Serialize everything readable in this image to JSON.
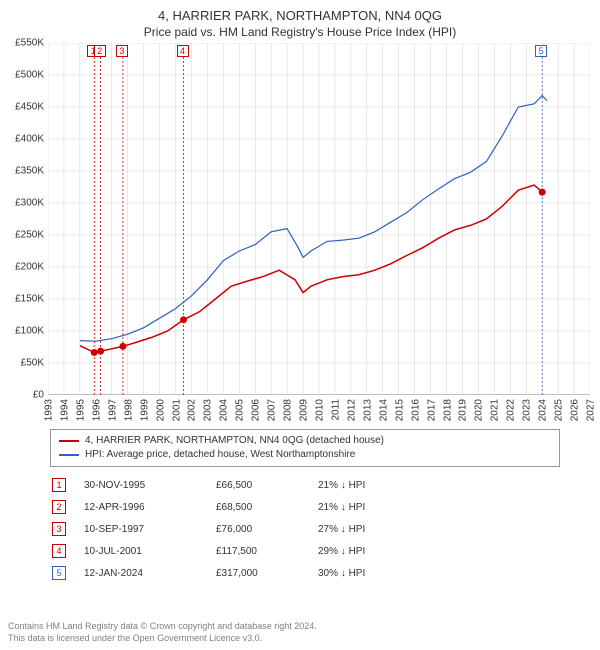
{
  "title": "4, HARRIER PARK, NORTHAMPTON, NN4 0QG",
  "subtitle": "Price paid vs. HM Land Registry's House Price Index (HPI)",
  "chart": {
    "type": "line",
    "background_color": "#ffffff",
    "grid_color": "#d0d0d0",
    "axis_color": "#808080",
    "xlim": [
      1993,
      2027
    ],
    "ylim": [
      0,
      550000
    ],
    "ytick_step": 50000,
    "yticks": [
      "£0",
      "£50K",
      "£100K",
      "£150K",
      "£200K",
      "£250K",
      "£300K",
      "£350K",
      "£400K",
      "£450K",
      "£500K",
      "£550K"
    ],
    "xticks": [
      1993,
      1994,
      1995,
      1996,
      1997,
      1998,
      1999,
      2000,
      2001,
      2002,
      2003,
      2004,
      2005,
      2006,
      2007,
      2008,
      2009,
      2010,
      2011,
      2012,
      2013,
      2014,
      2015,
      2016,
      2017,
      2018,
      2019,
      2020,
      2021,
      2022,
      2023,
      2024,
      2025,
      2026,
      2027
    ],
    "label_fontsize": 10,
    "series": [
      {
        "name": "property",
        "label": "4, HARRIER PARK, NORTHAMPTON, NN4 0QG (detached house)",
        "color": "#cc0000",
        "line_width": 1.5,
        "marker": "circle",
        "marker_size": 5,
        "data": [
          [
            1995.0,
            77000
          ],
          [
            1995.9,
            66500
          ],
          [
            1996.3,
            68500
          ],
          [
            1997.7,
            76000
          ],
          [
            1998.5,
            82000
          ],
          [
            1999.5,
            90000
          ],
          [
            2000.5,
            100000
          ],
          [
            2001.5,
            117500
          ],
          [
            2002.5,
            130000
          ],
          [
            2003.5,
            150000
          ],
          [
            2004.5,
            170000
          ],
          [
            2005.5,
            178000
          ],
          [
            2006.5,
            185000
          ],
          [
            2007.5,
            195000
          ],
          [
            2008.5,
            180000
          ],
          [
            2009.0,
            160000
          ],
          [
            2009.5,
            170000
          ],
          [
            2010.5,
            180000
          ],
          [
            2011.5,
            185000
          ],
          [
            2012.5,
            188000
          ],
          [
            2013.5,
            195000
          ],
          [
            2014.5,
            205000
          ],
          [
            2015.5,
            218000
          ],
          [
            2016.5,
            230000
          ],
          [
            2017.5,
            245000
          ],
          [
            2018.5,
            258000
          ],
          [
            2019.5,
            265000
          ],
          [
            2020.5,
            275000
          ],
          [
            2021.5,
            295000
          ],
          [
            2022.5,
            320000
          ],
          [
            2023.5,
            328000
          ],
          [
            2024.0,
            317000
          ]
        ],
        "markers_at": [
          [
            1995.9,
            66500
          ],
          [
            1996.3,
            68500
          ],
          [
            1997.7,
            76000
          ],
          [
            2001.5,
            117500
          ],
          [
            2024.0,
            317000
          ]
        ]
      },
      {
        "name": "hpi",
        "label": "HPI: Average price, detached house, West Northamptonshire",
        "color": "#3060c0",
        "line_width": 1.2,
        "marker": "none",
        "data": [
          [
            1995.0,
            85000
          ],
          [
            1996.0,
            84000
          ],
          [
            1997.0,
            88000
          ],
          [
            1998.0,
            95000
          ],
          [
            1999.0,
            105000
          ],
          [
            2000.0,
            120000
          ],
          [
            2001.0,
            135000
          ],
          [
            2002.0,
            155000
          ],
          [
            2003.0,
            180000
          ],
          [
            2004.0,
            210000
          ],
          [
            2005.0,
            225000
          ],
          [
            2006.0,
            235000
          ],
          [
            2007.0,
            255000
          ],
          [
            2008.0,
            260000
          ],
          [
            2008.7,
            230000
          ],
          [
            2009.0,
            215000
          ],
          [
            2009.5,
            225000
          ],
          [
            2010.5,
            240000
          ],
          [
            2011.5,
            242000
          ],
          [
            2012.5,
            245000
          ],
          [
            2013.5,
            255000
          ],
          [
            2014.5,
            270000
          ],
          [
            2015.5,
            285000
          ],
          [
            2016.5,
            305000
          ],
          [
            2017.5,
            322000
          ],
          [
            2018.5,
            338000
          ],
          [
            2019.5,
            348000
          ],
          [
            2020.5,
            365000
          ],
          [
            2021.5,
            405000
          ],
          [
            2022.5,
            450000
          ],
          [
            2023.5,
            455000
          ],
          [
            2024.0,
            468000
          ],
          [
            2024.3,
            460000
          ]
        ]
      }
    ],
    "event_lines": [
      {
        "year": 1995.9,
        "num": 1,
        "color": "#cc0000"
      },
      {
        "year": 1996.3,
        "num": 2,
        "color": "#cc0000"
      },
      {
        "year": 1997.7,
        "num": 3,
        "color": "#cc0000"
      },
      {
        "year": 2001.5,
        "num": 4,
        "color": "#cc0000"
      },
      {
        "year": 2024.0,
        "num": 5,
        "color": "#3060c0"
      }
    ]
  },
  "legend": {
    "border_color": "#999999",
    "items": [
      {
        "color": "#cc0000",
        "text": "4, HARRIER PARK, NORTHAMPTON, NN4 0QG (detached house)"
      },
      {
        "color": "#3060c0",
        "text": "HPI: Average price, detached house, West Northamptonshire"
      }
    ]
  },
  "events": [
    {
      "num": "1",
      "badge_color": "#cc0000",
      "date": "30-NOV-1995",
      "price": "£66,500",
      "delta": "21% ↓ HPI"
    },
    {
      "num": "2",
      "badge_color": "#cc0000",
      "date": "12-APR-1996",
      "price": "£68,500",
      "delta": "21% ↓ HPI"
    },
    {
      "num": "3",
      "badge_color": "#cc0000",
      "date": "10-SEP-1997",
      "price": "£76,000",
      "delta": "27% ↓ HPI"
    },
    {
      "num": "4",
      "badge_color": "#cc0000",
      "date": "10-JUL-2001",
      "price": "£117,500",
      "delta": "29% ↓ HPI"
    },
    {
      "num": "5",
      "badge_color": "#3060c0",
      "date": "12-JAN-2024",
      "price": "£317,000",
      "delta": "30% ↓ HPI"
    }
  ],
  "footer": {
    "line1": "Contains HM Land Registry data © Crown copyright and database right 2024.",
    "line2": "This data is licensed under the Open Government Licence v3.0."
  }
}
